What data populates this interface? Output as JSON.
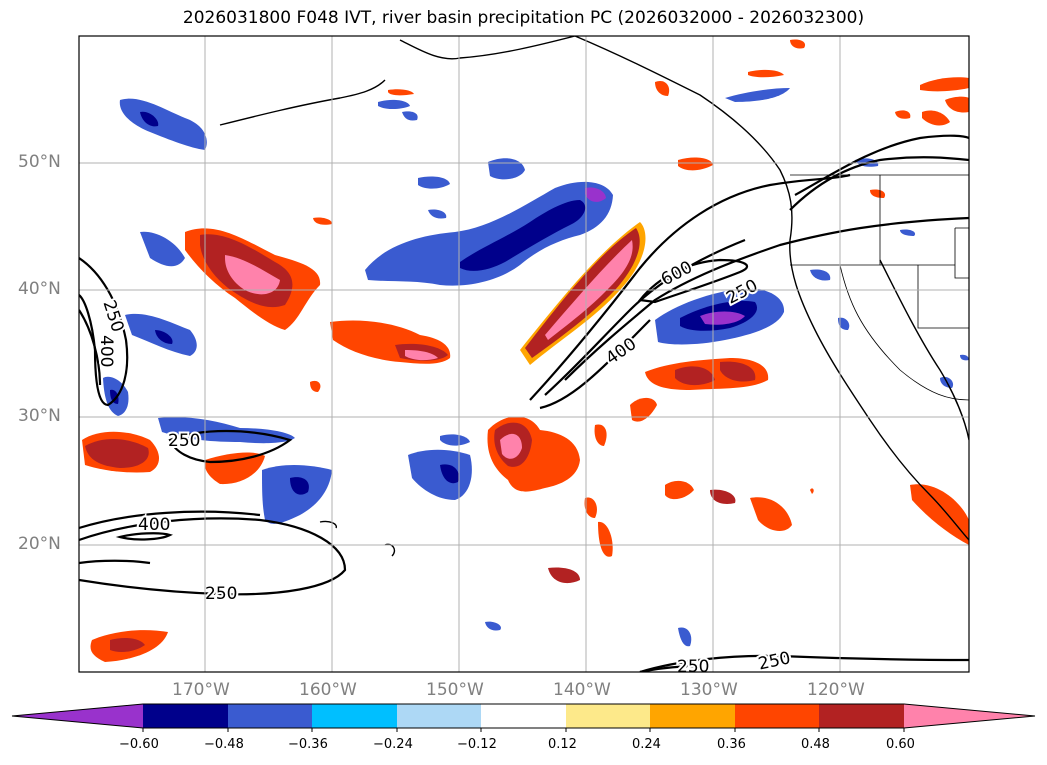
{
  "title": "2026031800 F048 IVT, river basin precipitation PC (2026032000 - 2026032300)",
  "map": {
    "lat_labels": [
      "50°N",
      "40°N",
      "30°N",
      "20°N"
    ],
    "lon_labels": [
      "170°W",
      "160°W",
      "150°W",
      "140°W",
      "130°W",
      "120°W"
    ],
    "contour_labels": [
      "250",
      "400",
      "250",
      "400",
      "250",
      "600",
      "400",
      "250",
      "250",
      "250"
    ],
    "grid": true,
    "extent": {
      "lon_min": -180,
      "lon_max": -110,
      "lat_min": 10,
      "lat_max": 60
    }
  },
  "colorbar": {
    "ticks": [
      "−0.60",
      "−0.48",
      "−0.36",
      "−0.24",
      "−0.12",
      "0.12",
      "0.24",
      "0.36",
      "0.48",
      "0.60"
    ],
    "colors": [
      "#9932cc",
      "#00008b",
      "#3a5bd0",
      "#00bfff",
      "#add8f5",
      "#ffffff",
      "#fde98a",
      "#ffa500",
      "#ff4500",
      "#b22222",
      "#ff82ab"
    ]
  },
  "colors": {
    "negative_deep": "#00008b",
    "negative_mid": "#3a5bd0",
    "negative_light": "#00bfff",
    "positive_light": "#fde98a",
    "positive_orange": "#ffa500",
    "positive_red": "#ff4500",
    "positive_dark": "#b22222",
    "positive_pink": "#ff82ab",
    "purple": "#9932cc",
    "grid": "#b0b0b0"
  }
}
